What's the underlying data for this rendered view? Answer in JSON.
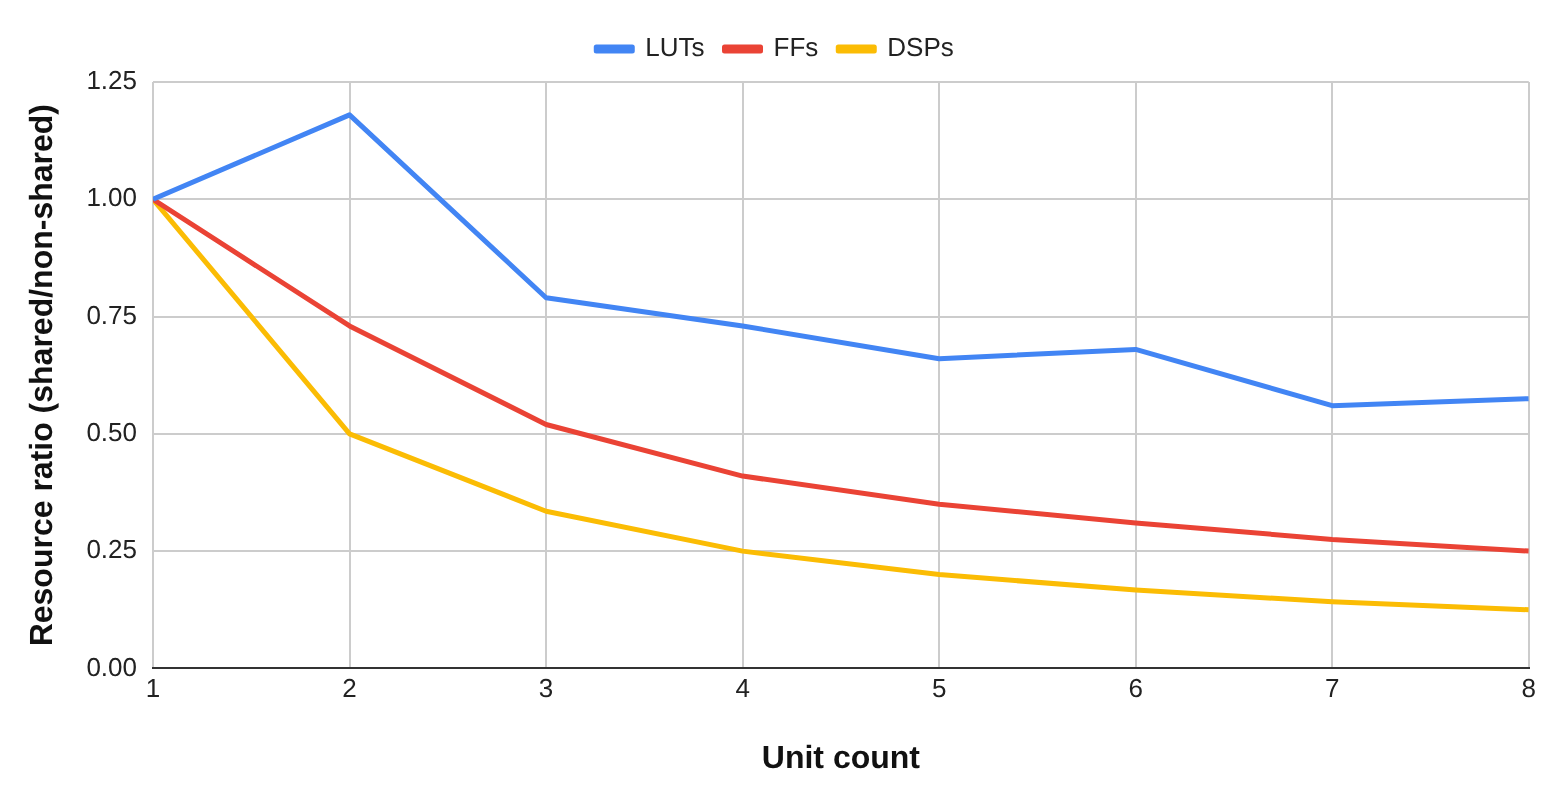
{
  "chart_data": {
    "type": "line",
    "xlabel": "Unit count",
    "ylabel": "Resource ratio (shared/non-shared)",
    "x": [
      1,
      2,
      3,
      4,
      5,
      6,
      7,
      8
    ],
    "series": [
      {
        "name": "LUTs",
        "color": "#4285f4",
        "values": [
          1.0,
          1.18,
          0.79,
          0.73,
          0.66,
          0.68,
          0.56,
          0.575
        ]
      },
      {
        "name": "FFs",
        "color": "#ea4335",
        "values": [
          1.0,
          0.73,
          0.52,
          0.41,
          0.35,
          0.31,
          0.275,
          0.25
        ]
      },
      {
        "name": "DSPs",
        "color": "#fbbc04",
        "values": [
          1.0,
          0.5,
          0.335,
          0.25,
          0.2,
          0.167,
          0.142,
          0.125
        ]
      }
    ],
    "xlim": [
      1,
      8
    ],
    "xticks": [
      1,
      2,
      3,
      4,
      5,
      6,
      7,
      8
    ],
    "ylim": [
      0,
      1.25
    ],
    "yticks": [
      {
        "value": 0,
        "label": "0.00"
      },
      {
        "value": 0.25,
        "label": "0.25"
      },
      {
        "value": 0.5,
        "label": "0.50"
      },
      {
        "value": 0.75,
        "label": "0.75"
      },
      {
        "value": 1,
        "label": "1.00"
      },
      {
        "value": 1.25,
        "label": "1.25"
      }
    ],
    "grid": true,
    "legend": "top",
    "marker": "none",
    "line_style": "solid"
  }
}
